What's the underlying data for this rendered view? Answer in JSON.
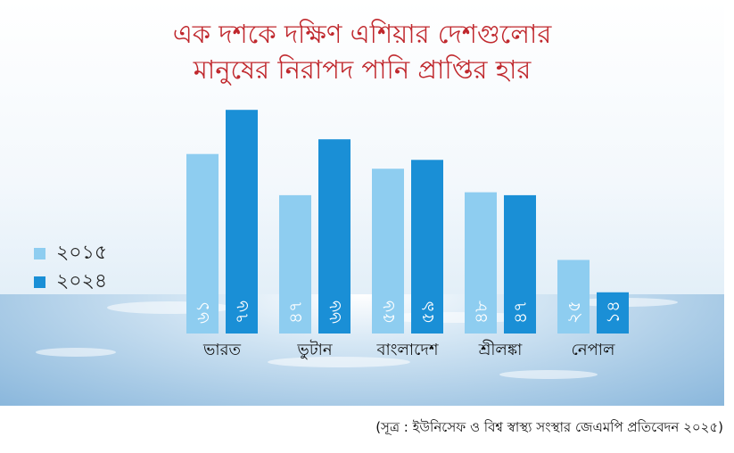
{
  "title_line1": "এক দশকে দক্ষিণ এশিয়ার দেশগুলোর",
  "title_line2": "মানুষের নিরাপদ পানি প্রাপ্তির হার",
  "source": "(সূত্র : ইউনিসেফ ও বিশ্ব স্বাস্থ্য সংস্থার জেএমপি প্রতিবেদন ২০২৫)",
  "colors": {
    "title": "#c0282d",
    "series_2015": "#8ecdf0",
    "series_2024": "#1a8fd6"
  },
  "chart_data": {
    "type": "bar",
    "title": "এক দশকে দক্ষিণ এশিয়ার দেশগুলোর মানুষের নিরাপদ পানি প্রাপ্তির হার",
    "categories": [
      "ভারত",
      "ভুটান",
      "বাংলাদেশ",
      "শ্রীলঙ্কা",
      "নেপাল"
    ],
    "series": [
      {
        "name": "২০১৫",
        "values": [
          61,
          47,
          56,
          48,
          25
        ],
        "labels": [
          "৬১",
          "৪৭",
          "৫৬",
          "৪৮",
          "২৫"
        ],
        "color": "#8ecdf0"
      },
      {
        "name": "২০২৪",
        "values": [
          76,
          66,
          59,
          47,
          14
        ],
        "labels": [
          "৭৬",
          "৬৬",
          "৫৯",
          "৪৭",
          "১৪"
        ],
        "color": "#1a8fd6"
      }
    ],
    "legend_position": "left",
    "grid": false,
    "ylim": [
      0,
      80
    ]
  }
}
